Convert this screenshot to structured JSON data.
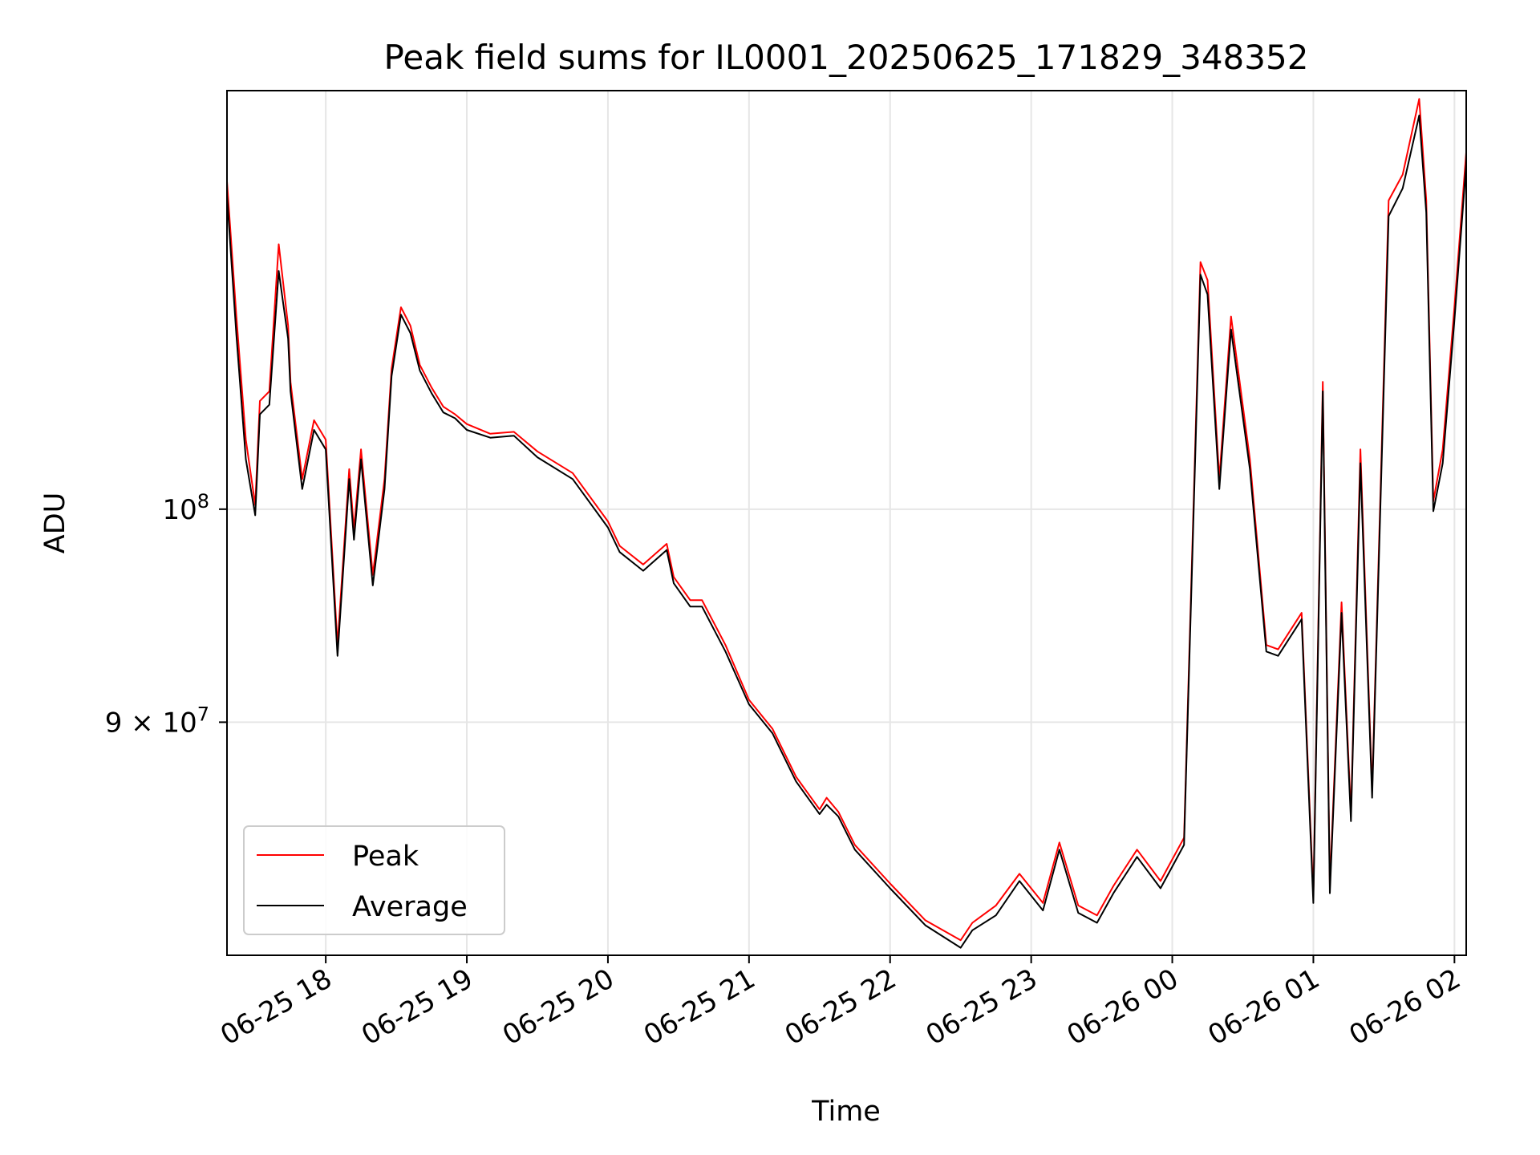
{
  "chart_data": {
    "type": "line",
    "title": "Peak field sums for IL0001_20250625_171829_348352",
    "xlabel": "Time",
    "ylabel": "ADU",
    "xscale": "time",
    "yscale": "log",
    "xlim": [
      "2025-06-25 17:18",
      "2025-06-26 02:05"
    ],
    "ylim": [
      80200000,
      123000000
    ],
    "grid": true,
    "legend": "bottom-left",
    "x_ticks": [
      {
        "value": "2025-06-25 18:00",
        "label": "06-25 18"
      },
      {
        "value": "2025-06-25 19:00",
        "label": "06-25 19"
      },
      {
        "value": "2025-06-25 20:00",
        "label": "06-25 20"
      },
      {
        "value": "2025-06-25 21:00",
        "label": "06-25 21"
      },
      {
        "value": "2025-06-25 22:00",
        "label": "06-25 22"
      },
      {
        "value": "2025-06-25 23:00",
        "label": "06-25 23"
      },
      {
        "value": "2025-06-26 00:00",
        "label": "06-26 00"
      },
      {
        "value": "2025-06-26 01:00",
        "label": "06-26 01"
      },
      {
        "value": "2025-06-26 02:00",
        "label": "06-26 02"
      }
    ],
    "y_ticks": [
      {
        "value": 100000000,
        "base": "10",
        "exp": "8",
        "mult": ""
      },
      {
        "value": 90000000,
        "base": "10",
        "exp": "7",
        "mult": "9 × "
      }
    ],
    "series": [
      {
        "name": "Peak",
        "color": "#ff0000",
        "x": [
          "2025-06-25 17:18",
          "2025-06-25 17:22",
          "2025-06-25 17:26",
          "2025-06-25 17:30",
          "2025-06-25 17:32",
          "2025-06-25 17:36",
          "2025-06-25 17:40",
          "2025-06-25 17:44",
          "2025-06-25 17:45",
          "2025-06-25 17:50",
          "2025-06-25 17:55",
          "2025-06-25 18:00",
          "2025-06-25 18:05",
          "2025-06-25 18:10",
          "2025-06-25 18:12",
          "2025-06-25 18:15",
          "2025-06-25 18:20",
          "2025-06-25 18:25",
          "2025-06-25 18:28",
          "2025-06-25 18:32",
          "2025-06-25 18:36",
          "2025-06-25 18:40",
          "2025-06-25 18:45",
          "2025-06-25 18:50",
          "2025-06-25 18:55",
          "2025-06-25 19:00",
          "2025-06-25 19:10",
          "2025-06-25 19:20",
          "2025-06-25 19:30",
          "2025-06-25 19:45",
          "2025-06-25 20:00",
          "2025-06-25 20:05",
          "2025-06-25 20:15",
          "2025-06-25 20:25",
          "2025-06-25 20:28",
          "2025-06-25 20:35",
          "2025-06-25 20:40",
          "2025-06-25 20:50",
          "2025-06-25 21:00",
          "2025-06-25 21:10",
          "2025-06-25 21:20",
          "2025-06-25 21:30",
          "2025-06-25 21:33",
          "2025-06-25 21:38",
          "2025-06-25 21:45",
          "2025-06-25 22:00",
          "2025-06-25 22:15",
          "2025-06-25 22:30",
          "2025-06-25 22:35",
          "2025-06-25 22:45",
          "2025-06-25 22:55",
          "2025-06-25 23:05",
          "2025-06-25 23:12",
          "2025-06-25 23:20",
          "2025-06-25 23:28",
          "2025-06-25 23:35",
          "2025-06-25 23:45",
          "2025-06-25 23:55",
          "2025-06-26 00:05",
          "2025-06-26 00:12",
          "2025-06-26 00:15",
          "2025-06-26 00:20",
          "2025-06-26 00:25",
          "2025-06-26 00:33",
          "2025-06-26 00:40",
          "2025-06-26 00:45",
          "2025-06-26 00:55",
          "2025-06-26 01:00",
          "2025-06-26 01:04",
          "2025-06-26 01:07",
          "2025-06-26 01:12",
          "2025-06-26 01:16",
          "2025-06-26 01:20",
          "2025-06-26 01:25",
          "2025-06-26 01:32",
          "2025-06-26 01:38",
          "2025-06-26 01:45",
          "2025-06-26 01:48",
          "2025-06-26 01:51",
          "2025-06-26 01:55",
          "2025-06-26 02:00",
          "2025-06-26 02:05"
        ],
        "y": [
          117600000,
          110000000,
          103500000,
          100200000,
          105500000,
          106000000,
          114000000,
          109500000,
          106500000,
          101500000,
          104500000,
          103500000,
          93500000,
          102000000,
          99000000,
          103000000,
          96800000,
          101500000,
          107200000,
          110500000,
          109500000,
          107400000,
          106200000,
          105200000,
          104800000,
          104300000,
          103800000,
          103900000,
          102900000,
          101800000,
          99400000,
          98200000,
          97300000,
          98300000,
          96700000,
          95600000,
          95600000,
          93500000,
          91000000,
          89700000,
          87600000,
          86200000,
          86700000,
          86100000,
          84700000,
          83100000,
          81600000,
          80800000,
          81500000,
          82200000,
          83500000,
          82300000,
          84800000,
          82200000,
          81800000,
          83000000,
          84500000,
          83200000,
          85000000,
          113000000,
          112000000,
          101500000,
          110000000,
          102500000,
          93500000,
          93300000,
          95000000,
          82600000,
          106500000,
          83000000,
          95500000,
          86000000,
          103000000,
          87000000,
          116500000,
          118000000,
          122500000,
          116500000,
          100400000,
          103000000,
          110500000,
          119300000
        ]
      },
      {
        "name": "Average",
        "color": "#000000",
        "x": [
          "2025-06-25 17:18",
          "2025-06-25 17:22",
          "2025-06-25 17:26",
          "2025-06-25 17:30",
          "2025-06-25 17:32",
          "2025-06-25 17:36",
          "2025-06-25 17:40",
          "2025-06-25 17:44",
          "2025-06-25 17:45",
          "2025-06-25 17:50",
          "2025-06-25 17:55",
          "2025-06-25 18:00",
          "2025-06-25 18:05",
          "2025-06-25 18:10",
          "2025-06-25 18:12",
          "2025-06-25 18:15",
          "2025-06-25 18:20",
          "2025-06-25 18:25",
          "2025-06-25 18:28",
          "2025-06-25 18:32",
          "2025-06-25 18:36",
          "2025-06-25 18:40",
          "2025-06-25 18:45",
          "2025-06-25 18:50",
          "2025-06-25 18:55",
          "2025-06-25 19:00",
          "2025-06-25 19:10",
          "2025-06-25 19:20",
          "2025-06-25 19:30",
          "2025-06-25 19:45",
          "2025-06-25 20:00",
          "2025-06-25 20:05",
          "2025-06-25 20:15",
          "2025-06-25 20:25",
          "2025-06-25 20:28",
          "2025-06-25 20:35",
          "2025-06-25 20:40",
          "2025-06-25 20:50",
          "2025-06-25 21:00",
          "2025-06-25 21:10",
          "2025-06-25 21:20",
          "2025-06-25 21:30",
          "2025-06-25 21:33",
          "2025-06-25 21:38",
          "2025-06-25 21:45",
          "2025-06-25 22:00",
          "2025-06-25 22:15",
          "2025-06-25 22:30",
          "2025-06-25 22:35",
          "2025-06-25 22:45",
          "2025-06-25 22:55",
          "2025-06-25 23:05",
          "2025-06-25 23:12",
          "2025-06-25 23:20",
          "2025-06-25 23:28",
          "2025-06-25 23:35",
          "2025-06-25 23:45",
          "2025-06-25 23:55",
          "2025-06-26 00:05",
          "2025-06-26 00:12",
          "2025-06-26 00:15",
          "2025-06-26 00:20",
          "2025-06-26 00:25",
          "2025-06-26 00:33",
          "2025-06-26 00:40",
          "2025-06-26 00:45",
          "2025-06-26 00:55",
          "2025-06-26 01:00",
          "2025-06-26 01:04",
          "2025-06-26 01:07",
          "2025-06-26 01:12",
          "2025-06-26 01:16",
          "2025-06-26 01:20",
          "2025-06-26 01:25",
          "2025-06-26 01:32",
          "2025-06-26 01:38",
          "2025-06-26 01:45",
          "2025-06-26 01:48",
          "2025-06-26 01:51",
          "2025-06-26 01:55",
          "2025-06-26 02:00",
          "2025-06-26 02:05"
        ],
        "y": [
          116800000,
          109000000,
          102500000,
          99700000,
          104800000,
          105300000,
          112500000,
          108800000,
          106000000,
          101000000,
          104000000,
          103000000,
          93000000,
          101500000,
          98500000,
          102500000,
          96300000,
          101000000,
          106800000,
          110100000,
          109100000,
          107100000,
          105900000,
          104900000,
          104600000,
          104000000,
          103600000,
          103700000,
          102600000,
          101500000,
          99100000,
          97900000,
          97000000,
          98000000,
          96400000,
          95300000,
          95300000,
          93200000,
          90800000,
          89500000,
          87400000,
          86000000,
          86400000,
          85900000,
          84500000,
          82900000,
          81400000,
          80500000,
          81200000,
          81800000,
          83200000,
          82000000,
          84500000,
          81900000,
          81500000,
          82700000,
          84200000,
          82900000,
          84700000,
          112300000,
          111200000,
          101000000,
          109300000,
          102000000,
          93200000,
          93000000,
          94700000,
          82300000,
          106000000,
          82700000,
          95000000,
          85700000,
          102300000,
          86700000,
          115600000,
          117200000,
          121500000,
          115800000,
          99900000,
          102300000,
          109800000,
          118600000
        ]
      }
    ]
  }
}
